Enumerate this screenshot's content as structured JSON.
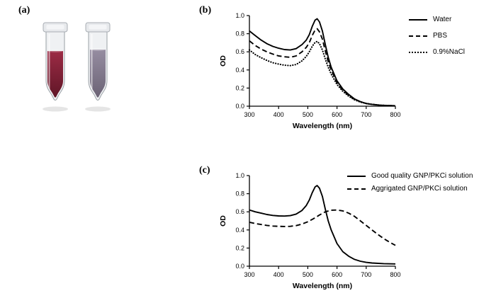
{
  "panels": {
    "a": {
      "label": "(a)"
    },
    "b": {
      "label": "(b)"
    },
    "c": {
      "label": "(c)"
    }
  },
  "photo": {
    "left_tube": {
      "appearance": "red GNP solution",
      "liquid_top": "#9c2b45",
      "liquid_bottom": "#601627"
    },
    "right_tube": {
      "appearance": "purple-gray aggregated solution",
      "liquid_top": "#968da1",
      "liquid_bottom": "#6b6375"
    }
  },
  "chart_data": [
    {
      "type": "line",
      "panel": "b",
      "title": "",
      "xlabel": "Wavelength (nm)",
      "ylabel": "OD",
      "xlim": [
        300,
        800
      ],
      "ylim": [
        0,
        1.0
      ],
      "xticks": [
        300,
        400,
        500,
        600,
        700,
        800
      ],
      "yticks": [
        "0.0",
        "0.2",
        "0.4",
        "0.6",
        "0.8",
        "1.0"
      ],
      "grid": false,
      "legend_position": "right",
      "series": [
        {
          "name": "Water",
          "style": "solid",
          "points": [
            [
              300,
              0.83
            ],
            [
              320,
              0.78
            ],
            [
              340,
              0.73
            ],
            [
              360,
              0.69
            ],
            [
              380,
              0.66
            ],
            [
              400,
              0.64
            ],
            [
              420,
              0.625
            ],
            [
              440,
              0.62
            ],
            [
              460,
              0.635
            ],
            [
              480,
              0.68
            ],
            [
              495,
              0.73
            ],
            [
              505,
              0.79
            ],
            [
              515,
              0.88
            ],
            [
              525,
              0.95
            ],
            [
              532,
              0.965
            ],
            [
              540,
              0.93
            ],
            [
              550,
              0.83
            ],
            [
              560,
              0.68
            ],
            [
              570,
              0.54
            ],
            [
              580,
              0.43
            ],
            [
              600,
              0.28
            ],
            [
              620,
              0.19
            ],
            [
              640,
              0.13
            ],
            [
              660,
              0.08
            ],
            [
              680,
              0.05
            ],
            [
              700,
              0.03
            ],
            [
              720,
              0.02
            ],
            [
              750,
              0.01
            ],
            [
              800,
              0.005
            ]
          ]
        },
        {
          "name": "PBS",
          "style": "dashed",
          "points": [
            [
              300,
              0.72
            ],
            [
              320,
              0.67
            ],
            [
              340,
              0.63
            ],
            [
              360,
              0.6
            ],
            [
              380,
              0.575
            ],
            [
              400,
              0.555
            ],
            [
              420,
              0.545
            ],
            [
              440,
              0.54
            ],
            [
              460,
              0.555
            ],
            [
              480,
              0.6
            ],
            [
              495,
              0.65
            ],
            [
              505,
              0.7
            ],
            [
              515,
              0.78
            ],
            [
              525,
              0.84
            ],
            [
              532,
              0.855
            ],
            [
              540,
              0.82
            ],
            [
              550,
              0.74
            ],
            [
              560,
              0.61
            ],
            [
              570,
              0.49
            ],
            [
              580,
              0.4
            ],
            [
              600,
              0.26
            ],
            [
              620,
              0.175
            ],
            [
              640,
              0.12
            ],
            [
              660,
              0.075
            ],
            [
              680,
              0.05
            ],
            [
              700,
              0.03
            ],
            [
              720,
              0.02
            ],
            [
              750,
              0.01
            ],
            [
              800,
              0.005
            ]
          ]
        },
        {
          "name": "0.9%NaCl",
          "style": "dotted",
          "points": [
            [
              300,
              0.62
            ],
            [
              320,
              0.57
            ],
            [
              340,
              0.535
            ],
            [
              360,
              0.505
            ],
            [
              380,
              0.48
            ],
            [
              400,
              0.465
            ],
            [
              420,
              0.452
            ],
            [
              440,
              0.448
            ],
            [
              460,
              0.46
            ],
            [
              480,
              0.5
            ],
            [
              495,
              0.55
            ],
            [
              505,
              0.6
            ],
            [
              515,
              0.66
            ],
            [
              525,
              0.705
            ],
            [
              532,
              0.715
            ],
            [
              540,
              0.69
            ],
            [
              550,
              0.62
            ],
            [
              560,
              0.52
            ],
            [
              570,
              0.43
            ],
            [
              580,
              0.355
            ],
            [
              600,
              0.24
            ],
            [
              620,
              0.165
            ],
            [
              640,
              0.11
            ],
            [
              660,
              0.07
            ],
            [
              680,
              0.045
            ],
            [
              700,
              0.03
            ],
            [
              720,
              0.02
            ],
            [
              750,
              0.01
            ],
            [
              800,
              0.005
            ]
          ]
        }
      ]
    },
    {
      "type": "line",
      "panel": "c",
      "title": "",
      "xlabel": "Wavelength (nm)",
      "ylabel": "OD",
      "xlim": [
        300,
        800
      ],
      "ylim": [
        0,
        1.0
      ],
      "xticks": [
        300,
        400,
        500,
        600,
        700,
        800
      ],
      "yticks": [
        "0.0",
        "0.2",
        "0.4",
        "0.6",
        "0.8",
        "1.0"
      ],
      "grid": false,
      "legend_position": "top-right",
      "series": [
        {
          "name": "Good quality GNP/PKCi solution",
          "style": "solid",
          "points": [
            [
              300,
              0.62
            ],
            [
              320,
              0.6
            ],
            [
              340,
              0.585
            ],
            [
              360,
              0.57
            ],
            [
              380,
              0.56
            ],
            [
              400,
              0.555
            ],
            [
              420,
              0.553
            ],
            [
              440,
              0.558
            ],
            [
              460,
              0.575
            ],
            [
              480,
              0.615
            ],
            [
              495,
              0.67
            ],
            [
              505,
              0.73
            ],
            [
              515,
              0.81
            ],
            [
              525,
              0.875
            ],
            [
              532,
              0.89
            ],
            [
              540,
              0.86
            ],
            [
              550,
              0.77
            ],
            [
              560,
              0.63
            ],
            [
              570,
              0.5
            ],
            [
              580,
              0.4
            ],
            [
              600,
              0.25
            ],
            [
              620,
              0.16
            ],
            [
              640,
              0.11
            ],
            [
              660,
              0.075
            ],
            [
              680,
              0.055
            ],
            [
              700,
              0.042
            ],
            [
              720,
              0.035
            ],
            [
              760,
              0.028
            ],
            [
              800,
              0.025
            ]
          ]
        },
        {
          "name": "Aggrigated  GNP/PKCi solution",
          "style": "dashed",
          "points": [
            [
              300,
              0.485
            ],
            [
              320,
              0.47
            ],
            [
              340,
              0.46
            ],
            [
              360,
              0.45
            ],
            [
              380,
              0.443
            ],
            [
              400,
              0.44
            ],
            [
              420,
              0.438
            ],
            [
              440,
              0.44
            ],
            [
              460,
              0.448
            ],
            [
              480,
              0.465
            ],
            [
              500,
              0.49
            ],
            [
              520,
              0.525
            ],
            [
              540,
              0.565
            ],
            [
              560,
              0.6
            ],
            [
              580,
              0.618
            ],
            [
              600,
              0.62
            ],
            [
              620,
              0.61
            ],
            [
              640,
              0.585
            ],
            [
              660,
              0.55
            ],
            [
              680,
              0.5
            ],
            [
              700,
              0.45
            ],
            [
              720,
              0.4
            ],
            [
              740,
              0.35
            ],
            [
              760,
              0.305
            ],
            [
              780,
              0.265
            ],
            [
              800,
              0.23
            ]
          ]
        }
      ]
    }
  ]
}
